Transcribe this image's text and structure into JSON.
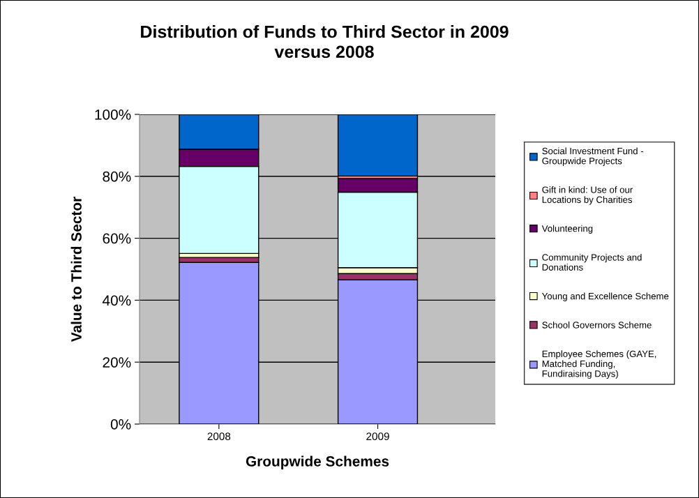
{
  "chart_data": {
    "type": "bar",
    "stacked": true,
    "title": "Distribution of Funds to Third Sector in 2009 versus 2008",
    "xlabel": "Groupwide Schemes",
    "ylabel": "Value to Third Sector",
    "categories": [
      "2008",
      "2009"
    ],
    "series": [
      {
        "name": "Employee Schemes (GAYE, Matched Funding, Fundiraising Days)",
        "color": "#9999ff",
        "values": [
          52.2,
          46.6
        ]
      },
      {
        "name": "School Governors Scheme",
        "color": "#993366",
        "values": [
          1.6,
          2.0
        ]
      },
      {
        "name": "Young and Excellence Scheme",
        "color": "#ffffcc",
        "values": [
          1.3,
          1.9
        ]
      },
      {
        "name": "Community Projects and Donations",
        "color": "#ccffff",
        "values": [
          28.1,
          24.4
        ]
      },
      {
        "name": "Volunteering",
        "color": "#660066",
        "values": [
          5.6,
          4.4
        ]
      },
      {
        "name": "Gift in kind: Use of our Locations by Charities",
        "color": "#ff8080",
        "values": [
          0,
          0.8
        ]
      },
      {
        "name": "Social Investment Fund - Groupwide Projects",
        "color": "#0066cc",
        "values": [
          11.2,
          19.9
        ]
      }
    ],
    "ylim": [
      0,
      100
    ],
    "yticks": [
      {
        "value": 0,
        "label": "0%"
      },
      {
        "value": 20,
        "label": "20%"
      },
      {
        "value": 40,
        "label": "40%"
      },
      {
        "value": 60,
        "label": "60%"
      },
      {
        "value": 80,
        "label": "80%"
      },
      {
        "value": 100,
        "label": "100%"
      }
    ],
    "grid": "y",
    "legend": "right"
  }
}
